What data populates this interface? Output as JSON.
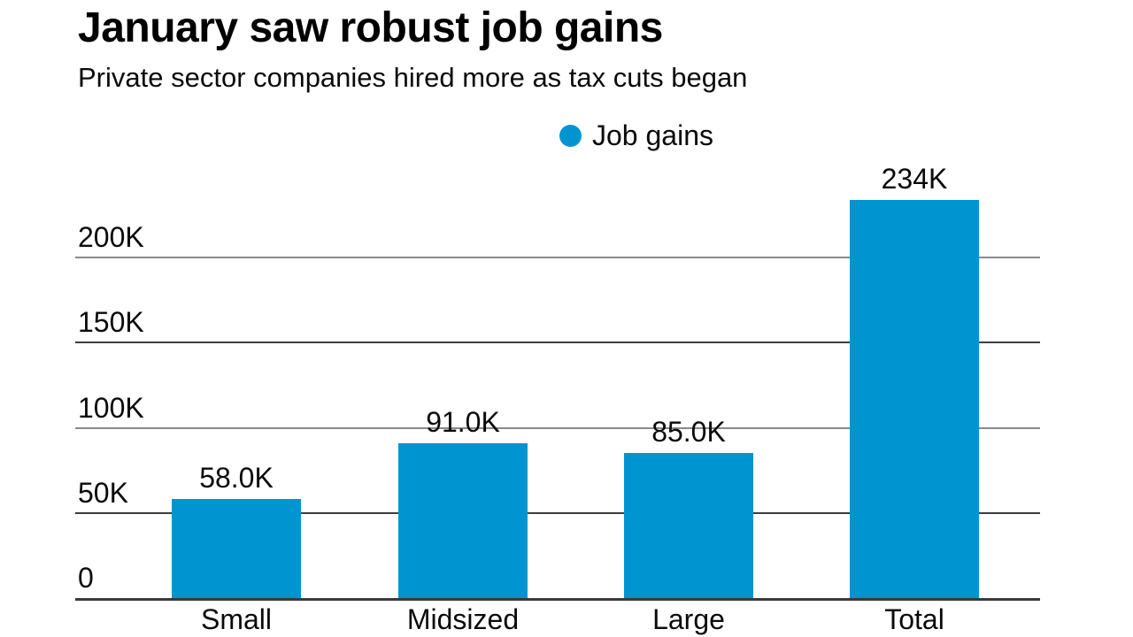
{
  "header": {
    "title": "January saw robust job gains",
    "subtitle": "Private sector companies hired more as tax cuts began"
  },
  "legend": {
    "label": "Job gains",
    "marker": "circle-dot-icon",
    "marker_color": "#0095d0"
  },
  "chart_data": {
    "type": "bar",
    "title": "January saw robust job gains",
    "subtitle": "Private sector companies hired more as tax cuts began",
    "series_name": "Job gains",
    "categories": [
      "Small",
      "Midsized",
      "Large",
      "Total"
    ],
    "values": [
      58000,
      91000,
      85000,
      234000
    ],
    "data_labels": [
      "58.0K",
      "91.0K",
      "85.0K",
      "234K"
    ],
    "bar_color": "#0095d0",
    "ytick_labels": [
      "0",
      "50K",
      "100K",
      "150K",
      "200K"
    ],
    "ytick_values": [
      0,
      50000,
      100000,
      150000,
      200000
    ],
    "ylim": [
      0,
      250000
    ],
    "grid": "horizontal",
    "legend_position": "top-center",
    "xlabel": "",
    "ylabel": ""
  }
}
